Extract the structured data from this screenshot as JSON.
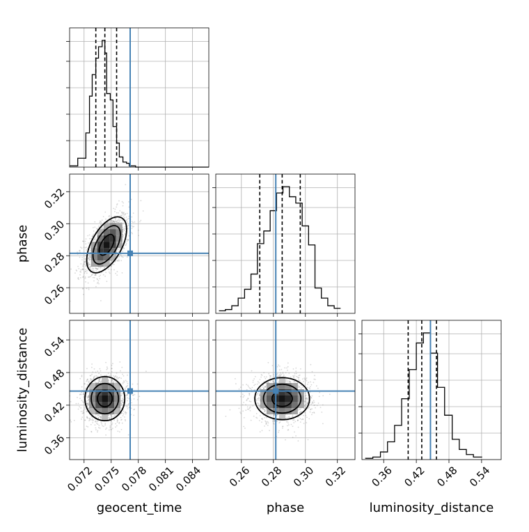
{
  "chart_data": {
    "type": "corner",
    "parameters": [
      "geocent_time",
      "phase",
      "luminosity_distance"
    ],
    "truths": {
      "geocent_time": 0.0771,
      "phase": 0.2815,
      "luminosity_distance": 0.446
    },
    "ticks": {
      "geocent_time": [
        "0.072",
        "0.075",
        "0.078",
        "0.081",
        "0.084"
      ],
      "phase": [
        "0.26",
        "0.28",
        "0.30",
        "0.32"
      ],
      "luminosity_distance": [
        "0.36",
        "0.42",
        "0.48",
        "0.54"
      ]
    },
    "axis_ranges": {
      "geocent_time": [
        0.0704,
        0.0858
      ],
      "phase": [
        0.244,
        0.331
      ],
      "luminosity_distance": [
        0.32,
        0.576
      ]
    },
    "marginals": {
      "geocent_time": {
        "quantiles": [
          0.0733,
          0.0743,
          0.0756
        ],
        "bin_edges": [
          0.0704,
          0.0713,
          0.0722,
          0.0726,
          0.0729,
          0.0733,
          0.0736,
          0.074,
          0.0743,
          0.0745,
          0.0749,
          0.0752,
          0.0756,
          0.0759,
          0.0763,
          0.0767,
          0.077,
          0.0773,
          0.0777,
          0.0781,
          0.0785,
          0.0791,
          0.0858
        ],
        "counts": [
          1,
          7,
          27,
          56,
          73,
          86,
          95,
          100,
          90,
          58,
          53,
          32,
          19,
          8,
          4,
          3,
          1,
          1,
          0,
          0,
          0,
          0
        ]
      },
      "phase": {
        "quantiles": [
          0.2715,
          0.2855,
          0.2968
        ],
        "bin_edges": [
          0.246,
          0.25,
          0.254,
          0.258,
          0.262,
          0.266,
          0.27,
          0.274,
          0.278,
          0.282,
          0.286,
          0.29,
          0.294,
          0.298,
          0.302,
          0.306,
          0.31,
          0.314,
          0.318,
          0.322
        ],
        "counts": [
          2,
          3,
          6,
          12,
          19,
          31,
          55,
          65,
          81,
          95,
          100,
          92,
          87,
          69,
          54,
          20,
          12,
          6,
          4
        ]
      },
      "luminosity_distance": {
        "quantiles": [
          0.405,
          0.43,
          0.457
        ],
        "bin_edges": [
          0.326,
          0.34,
          0.354,
          0.367,
          0.38,
          0.393,
          0.407,
          0.42,
          0.433,
          0.446,
          0.459,
          0.472,
          0.486,
          0.499,
          0.512,
          0.525,
          0.541
        ],
        "counts": [
          1,
          2,
          6,
          14,
          27,
          48,
          71,
          92,
          100,
          84,
          57,
          35,
          16,
          8,
          4,
          2
        ]
      }
    },
    "joint": [
      {
        "x": "geocent_time",
        "y": "phase",
        "peak": [
          0.0745,
          0.2868
        ],
        "sd": [
          0.0012,
          0.0095
        ],
        "rho": 0.55,
        "contour_levels": [
          0.39,
          0.86,
          0.99
        ]
      },
      {
        "x": "geocent_time",
        "y": "luminosity_distance",
        "peak": [
          0.0743,
          0.432
        ],
        "sd": [
          0.0012,
          0.022
        ],
        "rho": 0.0,
        "contour_levels": [
          0.39,
          0.86,
          0.99
        ]
      },
      {
        "x": "phase",
        "y": "luminosity_distance",
        "peak": [
          0.2855,
          0.432
        ],
        "sd": [
          0.0093,
          0.021
        ],
        "rho": 0.0,
        "contour_levels": [
          0.39,
          0.86,
          0.99
        ]
      }
    ],
    "grid": true
  }
}
